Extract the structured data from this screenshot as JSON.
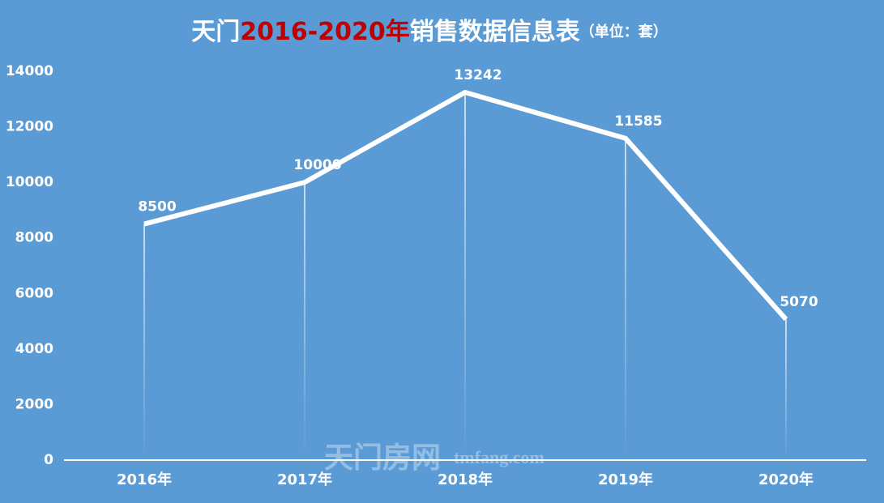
{
  "chart_data": {
    "type": "line",
    "title_parts": [
      {
        "text": "天门",
        "color": "#ffffff"
      },
      {
        "text": "2016-2020年",
        "color": "#c00000"
      },
      {
        "text": "销售数据信息表",
        "color": "#ffffff"
      }
    ],
    "unit": "（单位：套）",
    "categories": [
      "2016年",
      "2017年",
      "2018年",
      "2019年",
      "2020年"
    ],
    "values": [
      8500,
      10000,
      13242,
      11585,
      5070
    ],
    "color": "#ffffff",
    "ylim": [
      0,
      14000
    ],
    "yticks": [
      0,
      2000,
      4000,
      6000,
      8000,
      10000,
      12000,
      14000
    ],
    "grid": false,
    "watermark": "天门房网",
    "watermark_url": "tmfang.com"
  }
}
